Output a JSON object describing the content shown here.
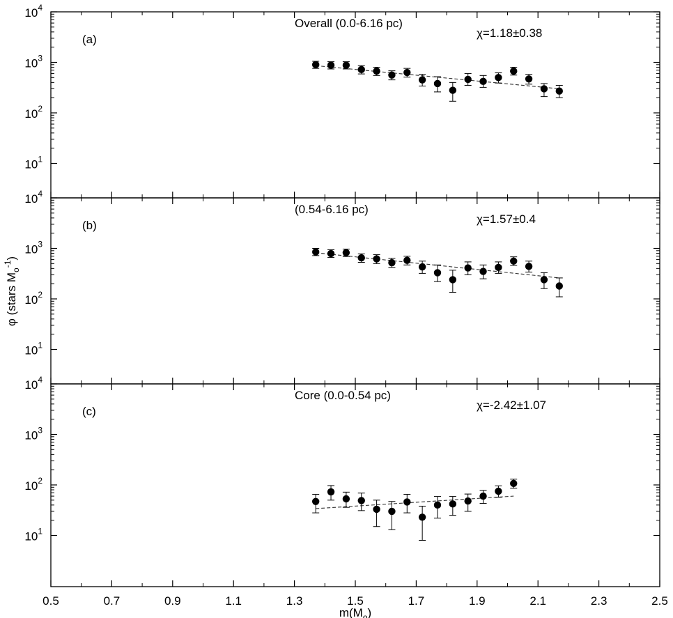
{
  "chart_data": {
    "type": "scatter",
    "xlabel": "m(M",
    "xlabel_sub": "o",
    "xlabel_close": ")",
    "ylabel": "φ (stars M",
    "ylabel_sub": "o",
    "ylabel_sup": "-1",
    "ylabel_close": ")",
    "x_range": [
      0.5,
      2.5
    ],
    "x_ticks": [
      "0.5",
      "0.7",
      "0.9",
      "1.1",
      "1.3",
      "1.5",
      "1.7",
      "1.9",
      "2.1",
      "2.3",
      "2.5"
    ],
    "y_scale": "log",
    "y_range": [
      1,
      10000
    ],
    "y_ticks": [
      {
        "base": "10",
        "exp": "1"
      },
      {
        "base": "10",
        "exp": "2"
      },
      {
        "base": "10",
        "exp": "3"
      },
      {
        "base": "10",
        "exp": "4"
      }
    ],
    "grid": false,
    "panels": [
      {
        "id": "a",
        "label": "(a)",
        "title": "Overall (0.0-6.16 pc)",
        "slope_text": "χ=1.18±0.38",
        "x": [
          1.37,
          1.42,
          1.47,
          1.52,
          1.57,
          1.62,
          1.67,
          1.72,
          1.77,
          1.82,
          1.87,
          1.92,
          1.97,
          2.02,
          2.07,
          2.12,
          2.17
        ],
        "y": [
          900,
          880,
          880,
          720,
          670,
          560,
          630,
          450,
          380,
          280,
          460,
          420,
          500,
          670,
          470,
          300,
          270
        ],
        "y_low": [
          760,
          740,
          740,
          590,
          550,
          450,
          510,
          340,
          260,
          170,
          350,
          320,
          390,
          560,
          370,
          210,
          200
        ],
        "y_high": [
          1050,
          1030,
          1030,
          860,
          800,
          680,
          760,
          580,
          520,
          400,
          600,
          550,
          620,
          800,
          580,
          380,
          350
        ],
        "fit": {
          "x": [
            1.37,
            2.17
          ],
          "y": [
            860,
            300
          ]
        }
      },
      {
        "id": "b",
        "label": "(b)",
        "title": "(0.54-6.16 pc)",
        "slope_text": "χ=1.57±0.4",
        "x": [
          1.37,
          1.42,
          1.47,
          1.52,
          1.57,
          1.62,
          1.67,
          1.72,
          1.77,
          1.82,
          1.87,
          1.92,
          1.97,
          2.02,
          2.07,
          2.12,
          2.17
        ],
        "y": [
          850,
          790,
          820,
          650,
          620,
          520,
          580,
          430,
          330,
          240,
          410,
          350,
          420,
          560,
          440,
          240,
          180
        ],
        "y_low": [
          720,
          660,
          690,
          530,
          500,
          420,
          470,
          320,
          220,
          135,
          300,
          250,
          320,
          460,
          340,
          160,
          110
        ],
        "y_high": [
          1000,
          940,
          970,
          780,
          750,
          640,
          700,
          560,
          470,
          370,
          540,
          470,
          540,
          680,
          560,
          330,
          260
        ],
        "fit": {
          "x": [
            1.37,
            2.17
          ],
          "y": [
            820,
            260
          ]
        }
      },
      {
        "id": "c",
        "label": "(c)",
        "title": "Core (0.0-0.54 pc)",
        "slope_text": "χ=-2.42±1.07",
        "x": [
          1.37,
          1.42,
          1.47,
          1.52,
          1.57,
          1.62,
          1.67,
          1.72,
          1.77,
          1.82,
          1.87,
          1.92,
          1.97,
          2.02
        ],
        "y": [
          47,
          73,
          53,
          49,
          33,
          30,
          46,
          23,
          40,
          42,
          48,
          60,
          75,
          107
        ],
        "y_low": [
          28,
          50,
          36,
          31,
          15,
          13,
          28,
          8,
          22,
          25,
          30,
          43,
          57,
          86
        ],
        "y_high": [
          65,
          97,
          72,
          69,
          50,
          47,
          65,
          38,
          59,
          59,
          66,
          78,
          96,
          130
        ],
        "fit": {
          "x": [
            1.37,
            2.02
          ],
          "y": [
            34,
            60
          ]
        }
      }
    ]
  }
}
